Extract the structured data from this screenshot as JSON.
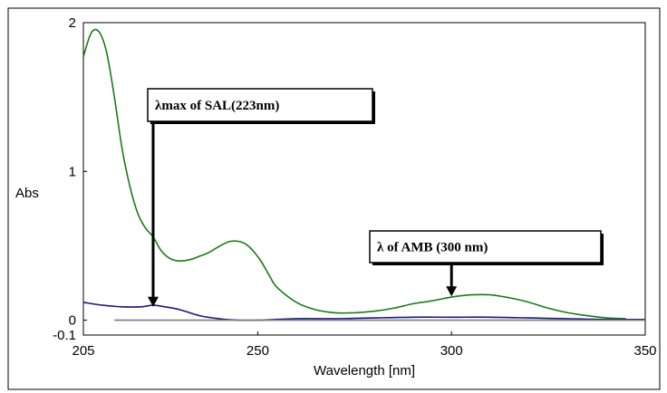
{
  "chart_data": {
    "type": "line",
    "xlabel": "Wavelength [nm]",
    "ylabel": "Abs",
    "xlim": [
      205,
      350
    ],
    "ylim": [
      -0.1,
      2
    ],
    "x_ticks": [
      {
        "value": 205,
        "label": "205"
      },
      {
        "value": 250,
        "label": "250"
      },
      {
        "value": 300,
        "label": "300"
      },
      {
        "value": 350,
        "label": "350"
      }
    ],
    "y_ticks": [
      {
        "value": 2,
        "label": "2"
      },
      {
        "value": 1,
        "label": "1"
      },
      {
        "value": 0,
        "label": "0"
      },
      {
        "value": -0.1,
        "label": "-0.1"
      }
    ],
    "grid": false,
    "legend": "none",
    "series": [
      {
        "color": "#1a7a1a",
        "x": [
          205,
          207,
          209,
          211,
          213,
          215,
          217,
          219,
          221,
          223,
          225,
          227,
          229,
          231,
          233,
          235,
          237,
          239,
          241,
          243,
          245,
          247,
          249,
          251,
          253,
          255,
          260,
          265,
          270,
          275,
          280,
          285,
          290,
          295,
          300,
          305,
          310,
          315,
          320,
          325,
          330,
          335,
          340,
          345
        ],
        "y": [
          1.77,
          1.93,
          1.94,
          1.8,
          1.5,
          1.15,
          0.9,
          0.72,
          0.62,
          0.56,
          0.47,
          0.42,
          0.4,
          0.4,
          0.41,
          0.43,
          0.45,
          0.48,
          0.51,
          0.53,
          0.53,
          0.51,
          0.46,
          0.39,
          0.3,
          0.22,
          0.12,
          0.07,
          0.05,
          0.05,
          0.06,
          0.08,
          0.11,
          0.13,
          0.155,
          0.17,
          0.17,
          0.15,
          0.12,
          0.08,
          0.05,
          0.03,
          0.015,
          0.01
        ]
      },
      {
        "color": "#1a1a80",
        "x": [
          205,
          210,
          215,
          220,
          223,
          226,
          230,
          235,
          240,
          245,
          250,
          260,
          270,
          280,
          290,
          300,
          310,
          320,
          330,
          340,
          350
        ],
        "y": [
          0.12,
          0.1,
          0.09,
          0.09,
          0.1,
          0.09,
          0.07,
          0.03,
          0.01,
          0.0,
          0.0,
          0.01,
          0.01,
          0.015,
          0.02,
          0.02,
          0.02,
          0.015,
          0.01,
          0.005,
          0.005
        ]
      },
      {
        "color": "#7a7a7a",
        "x": [
          213,
          350
        ],
        "y": [
          0.0,
          0.0
        ]
      }
    ],
    "annotations": [
      {
        "text": "λmax of SAL(223nm)",
        "x": 223,
        "arrow_tip_y": 0.09
      },
      {
        "text": "λ of AMB (300 nm)",
        "x": 300,
        "arrow_tip_y": 0.16
      }
    ]
  }
}
